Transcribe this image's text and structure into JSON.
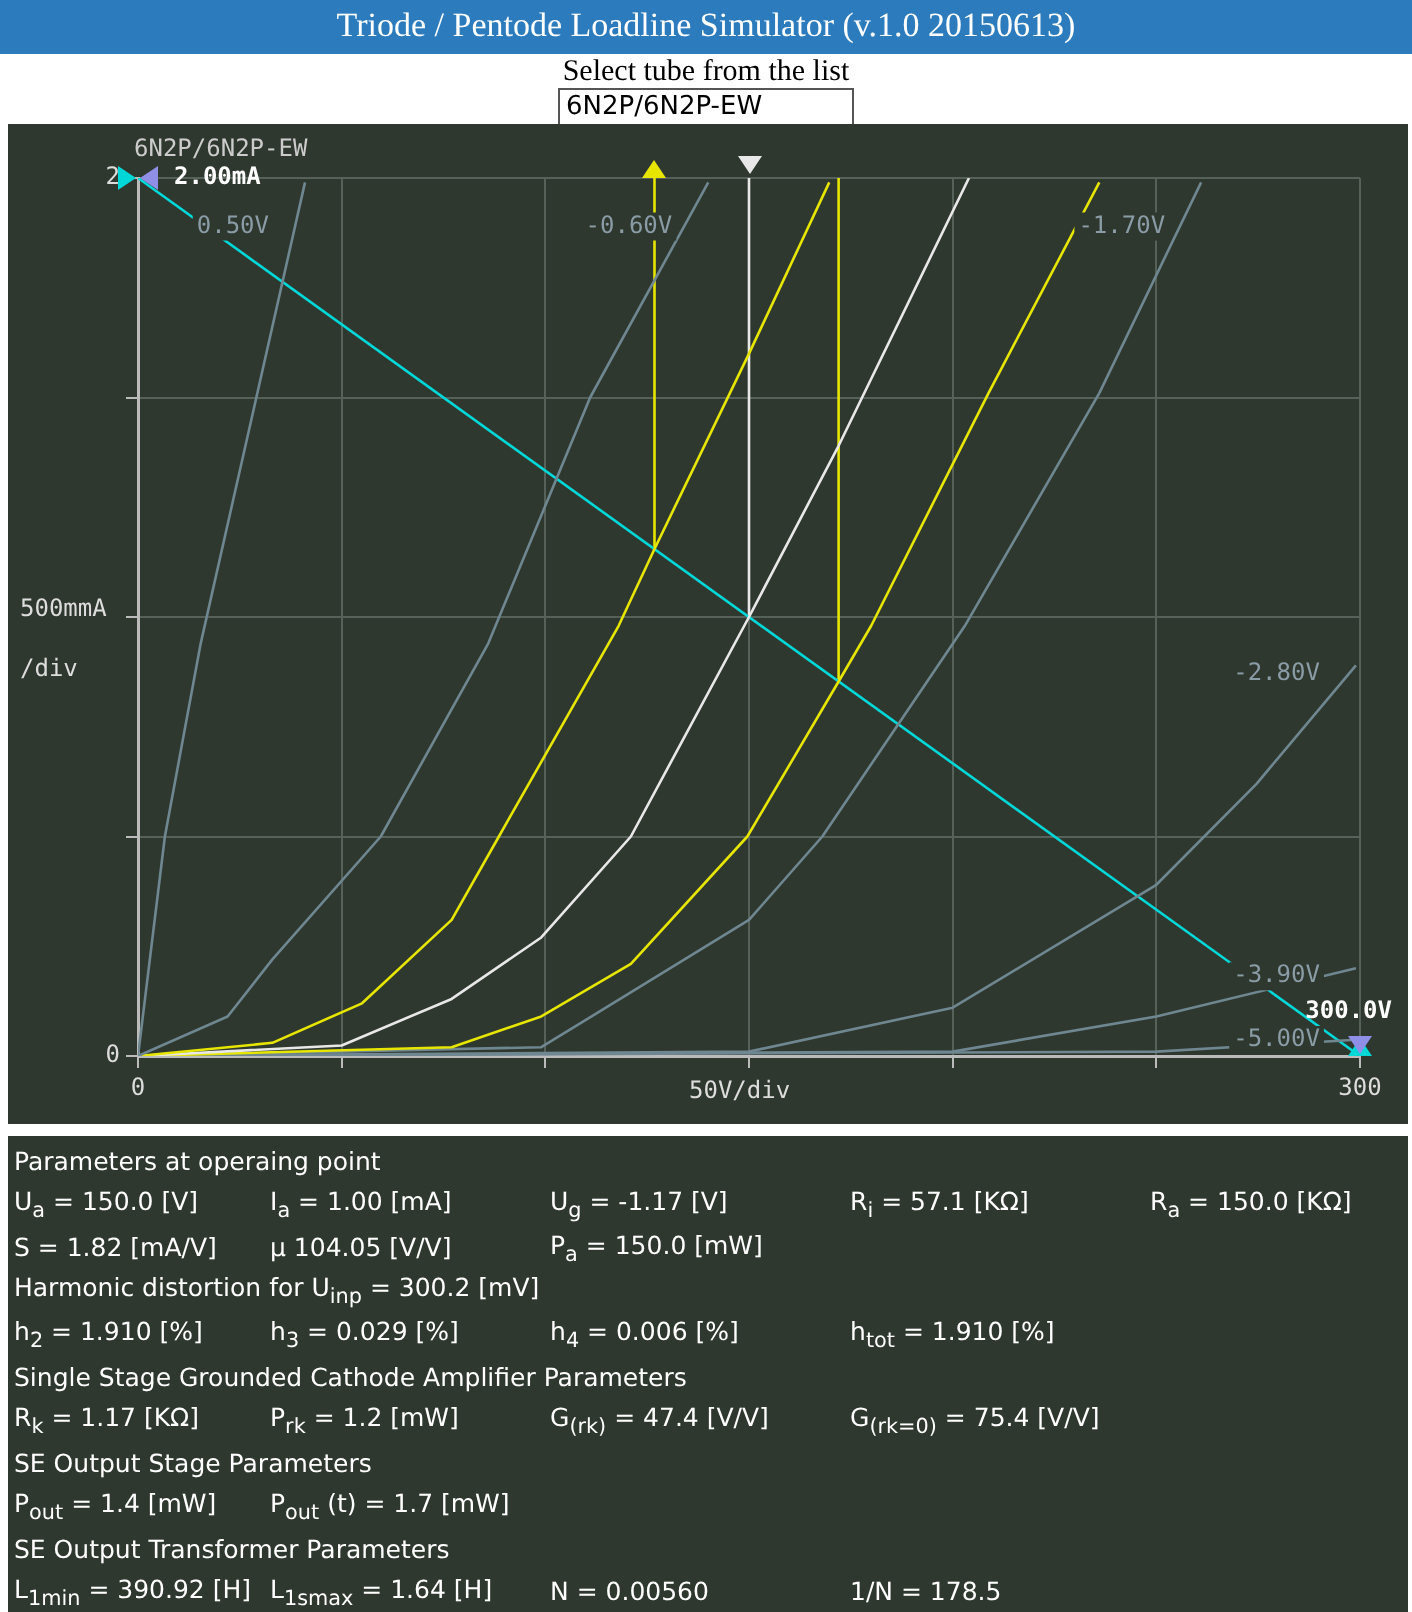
{
  "chart_data": {
    "type": "line",
    "title": "Triode / Pentode Loadline Simulator (v.1.0 20150613)",
    "xlabel": "50V/div",
    "ylabel": "500mmA /div",
    "xlim": [
      0,
      300
    ],
    "ylim": [
      0,
      2
    ],
    "xticks": [
      0,
      {
        "value": 50,
        "label": null
      },
      {
        "value": 100,
        "label": null
      },
      {
        "value": 150,
        "label": null
      },
      {
        "value": 200,
        "label": null
      },
      {
        "value": 250,
        "label": null
      },
      300
    ],
    "yticks": [
      0,
      {
        "value": 0.5,
        "label": null
      },
      {
        "value": 1,
        "label": null
      },
      {
        "value": 1.5,
        "label": null
      },
      2
    ],
    "grid": true,
    "legend": false,
    "marker": "none",
    "line_style": "solid",
    "series": [
      {
        "name": "0.50V",
        "color": "#6f8791",
        "x": [
          0,
          6.6,
          15.4,
          41
        ],
        "values": [
          0,
          0.5,
          0.94,
          1.99
        ]
      },
      {
        "name": "-0.60V",
        "color": "#6f8791",
        "x": [
          0,
          22,
          33,
          59.6,
          86,
          111,
          140
        ],
        "values": [
          0,
          0.09,
          0.22,
          0.5,
          0.94,
          1.5,
          1.99
        ]
      },
      {
        "color": "#e6e600",
        "x": [
          0,
          33,
          55,
          77,
          88.6,
          118,
          126.8,
          150,
          169.7
        ],
        "values": [
          0,
          0.03,
          0.12,
          0.31,
          0.5,
          0.98,
          1.155,
          1.6,
          1.99
        ]
      },
      {
        "color": "#e8e8e8",
        "x": [
          0,
          50,
          77,
          99,
          121,
          150,
          172,
          204
        ],
        "values": [
          0,
          0.024,
          0.13,
          0.27,
          0.5,
          1.0,
          1.39,
          2.0
        ]
      },
      {
        "color": "#e6e600",
        "x": [
          0,
          77,
          99,
          121,
          149.6,
          172,
          180,
          208.8,
          236
        ],
        "values": [
          0,
          0.02,
          0.09,
          0.21,
          0.5,
          0.853,
          0.98,
          1.51,
          1.99
        ]
      },
      {
        "name": "-1.70V",
        "color": "#6f8791",
        "x": [
          0,
          99,
          150,
          168,
          203,
          236,
          261
        ],
        "values": [
          0,
          0.02,
          0.31,
          0.5,
          0.98,
          1.51,
          1.99
        ]
      },
      {
        "name": "-2.80V",
        "color": "#6f8791",
        "x": [
          0,
          150,
          200,
          250,
          274.6,
          299
        ],
        "values": [
          0,
          0.01,
          0.11,
          0.39,
          0.62,
          0.89
        ]
      },
      {
        "name": "-3.90V",
        "color": "#6f8791",
        "x": [
          0,
          200,
          250,
          299
        ],
        "values": [
          0,
          0.01,
          0.09,
          0.2
        ]
      },
      {
        "name": "-5.00V",
        "color": "#6f8791",
        "x": [
          0,
          250,
          299
        ],
        "values": [
          0,
          0.01,
          0.037
        ]
      },
      {
        "color": "#00d8d8",
        "x": [
          0,
          300
        ],
        "values": [
          2,
          0
        ]
      },
      {
        "color": "#e6e600",
        "x": [
          126.8,
          126.8
        ],
        "values": [
          1.155,
          2
        ]
      },
      {
        "color": "#e6e600",
        "x": [
          172,
          172
        ],
        "values": [
          0.853,
          2
        ]
      },
      {
        "color": "#e8e8e8",
        "x": [
          150,
          150
        ],
        "values": [
          1.0,
          2
        ]
      }
    ],
    "annotations": [
      "Select tube from the list",
      "6N2P/6N2P-EW",
      "6N2P/6N2P-EW",
      {
        "text": "2.00mA",
        "x": 0,
        "y": 2
      },
      {
        "text": "300.0V",
        "x": 300,
        "y": 0
      },
      "Parameters at operaing point",
      "U$_{a}$ = 150.0 [V]",
      "I$_{a}$ = 1.00 [mA]",
      "U$_{g}$ = -1.17 [V]",
      "R$_{i}$ = 57.1 [KΩ]",
      "R$_{a}$ = 150.0 [KΩ]",
      "S = 1.82 [mA/V]",
      "μ 104.05 [V/V]",
      "P$_{a}$ = 150.0 [mW]",
      "Harmonic distortion for U$_{inp}$ = 300.2 [mV]",
      "h$_{2}$ = 1.910 [%]",
      "h$_{3}$ = 0.029 [%]",
      "h$_{4}$ = 0.006 [%]",
      "h$_{tot}$ = 1.910 [%]",
      "Single Stage Grounded Cathode Amplifier Parameters",
      "R$_{k}$ = 1.17 [KΩ]",
      "P$_{rk}$ = 1.2 [mW]",
      "G$_{(rk)}$ = 47.4 [V/V]",
      "G$_{(rk=0)}$ = 75.4 [V/V]",
      "SE Output Stage Parameters",
      "P$_{out}$ = 1.4 [mW]",
      "P$_{out}$ (t) = 1.7 [mW]",
      "SE Output Transformer Parameters",
      "L$_{1min}$ = 390.92 [H]",
      "L$_{1smax}$ = 1.64 [H]",
      "N = 0.00560",
      "1/N = 178.5"
    ]
  }
}
